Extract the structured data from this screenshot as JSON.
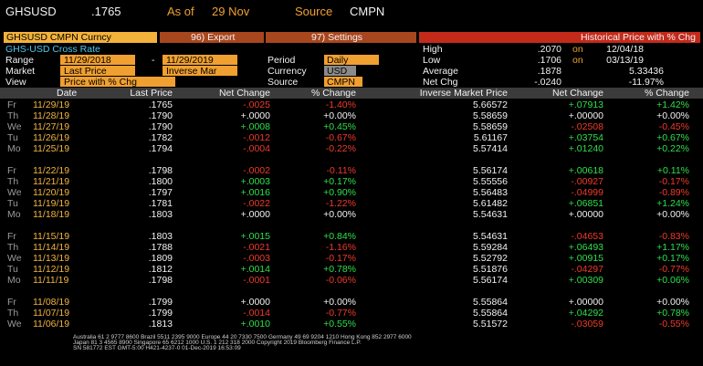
{
  "header": {
    "ticker": "GHSUSD",
    "price": ".1765",
    "as_of_label": "As of",
    "as_of": "29 Nov",
    "source_label": "Source",
    "source": "CMPN"
  },
  "toolbar": {
    "security": "GHSUSD CMPN Curncy",
    "export": "96) Export",
    "settings": "97) Settings",
    "title": "Historical Price with % Chg"
  },
  "subtitle": "GHS-USD Cross Rate",
  "params": {
    "range_label": "Range",
    "range_start": "11/29/2018",
    "range_sep": "-",
    "range_end": "11/29/2019",
    "period_label": "Period",
    "period": "Daily",
    "market_label": "Market",
    "market": "Last Price",
    "market2": "Inverse Mar",
    "currency_label": "Currency",
    "currency": "USD",
    "view_label": "View",
    "view": "Price with % Chg",
    "source_label": "Source",
    "source": "CMPN"
  },
  "stats": {
    "high_label": "High",
    "high": ".2070",
    "high_on": "on",
    "high_date": "12/04/18",
    "low_label": "Low",
    "low": ".1706",
    "low_on": "on",
    "low_date": "03/13/19",
    "average_label": "Average",
    "average": ".1878",
    "average_inverse": "5.33436",
    "net_label": "Net Chg",
    "net": "-.0240",
    "net_pct": "-11.97%"
  },
  "table": {
    "columns": [
      "Date",
      "Last Price",
      "Net Change",
      "% Change",
      "Inverse Market Price",
      "Net Change",
      "% Change"
    ],
    "groups": [
      [
        [
          "Fr",
          "11/29/19",
          ".1765",
          "-.0025",
          "-1.40%",
          "5.66572",
          "+.07913",
          "+1.42%"
        ],
        [
          "Th",
          "11/28/19",
          ".1790",
          "+.0000",
          "+0.00%",
          "5.58659",
          "+.00000",
          "+0.00%"
        ],
        [
          "We",
          "11/27/19",
          ".1790",
          "+.0008",
          "+0.45%",
          "5.58659",
          "-.02508",
          "-0.45%"
        ],
        [
          "Tu",
          "11/26/19",
          ".1782",
          "-.0012",
          "-0.67%",
          "5.61167",
          "+.03754",
          "+0.67%"
        ],
        [
          "Mo",
          "11/25/19",
          ".1794",
          "-.0004",
          "-0.22%",
          "5.57414",
          "+.01240",
          "+0.22%"
        ]
      ],
      [
        [
          "Fr",
          "11/22/19",
          ".1798",
          "-.0002",
          "-0.11%",
          "5.56174",
          "+.00618",
          "+0.11%"
        ],
        [
          "Th",
          "11/21/19",
          ".1800",
          "+.0003",
          "+0.17%",
          "5.55556",
          "-.00927",
          "-0.17%"
        ],
        [
          "We",
          "11/20/19",
          ".1797",
          "+.0016",
          "+0.90%",
          "5.56483",
          "-.04999",
          "-0.89%"
        ],
        [
          "Tu",
          "11/19/19",
          ".1781",
          "-.0022",
          "-1.22%",
          "5.61482",
          "+.06851",
          "+1.24%"
        ],
        [
          "Mo",
          "11/18/19",
          ".1803",
          "+.0000",
          "+0.00%",
          "5.54631",
          "+.00000",
          "+0.00%"
        ]
      ],
      [
        [
          "Fr",
          "11/15/19",
          ".1803",
          "+.0015",
          "+0.84%",
          "5.54631",
          "-.04653",
          "-0.83%"
        ],
        [
          "Th",
          "11/14/19",
          ".1788",
          "-.0021",
          "-1.16%",
          "5.59284",
          "+.06493",
          "+1.17%"
        ],
        [
          "We",
          "11/13/19",
          ".1809",
          "-.0003",
          "-0.17%",
          "5.52792",
          "+.00915",
          "+0.17%"
        ],
        [
          "Tu",
          "11/12/19",
          ".1812",
          "+.0014",
          "+0.78%",
          "5.51876",
          "-.04297",
          "-0.77%"
        ],
        [
          "Mo",
          "11/11/19",
          ".1798",
          "-.0001",
          "-0.06%",
          "5.56174",
          "+.00309",
          "+0.06%"
        ]
      ],
      [
        [
          "Fr",
          "11/08/19",
          ".1799",
          "+.0000",
          "+0.00%",
          "5.55864",
          "+.00000",
          "+0.00%"
        ],
        [
          "Th",
          "11/07/19",
          ".1799",
          "-.0014",
          "-0.77%",
          "5.55864",
          "+.04292",
          "+0.78%"
        ],
        [
          "We",
          "11/06/19",
          ".1813",
          "+.0010",
          "+0.55%",
          "5.51572",
          "-.03059",
          "-0.55%"
        ]
      ]
    ]
  },
  "footer": [
    "Australia 61 2 9777 8600 Brazil 5511 2395 9000 Europe 44 20 7330 7500 Germany 49 69 9204 1210 Hong Kong 852 2977 6000",
    "Japan 81 3 4565 8900 Singapore 65 6212 1000 U.S. 1 212 318 2000 Copyright 2019 Bloomberg Finance L.P.",
    "SN 581772 EST GMT-5:00 H421-4237-0 01-Dec-2019 16:53:09"
  ]
}
